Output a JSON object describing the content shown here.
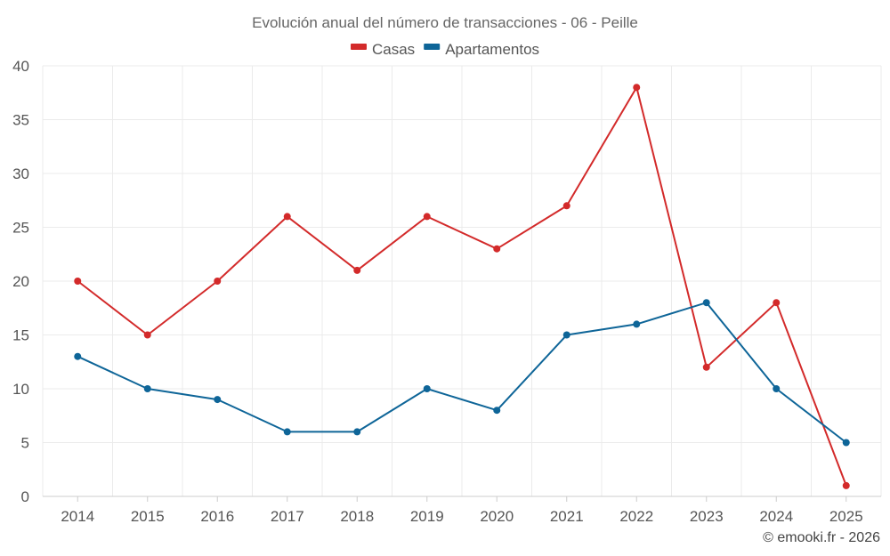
{
  "chart_data": {
    "type": "line",
    "title": "Evolución anual del número de transacciones - 06 - Peille",
    "categories": [
      "2014",
      "2015",
      "2016",
      "2017",
      "2018",
      "2019",
      "2020",
      "2021",
      "2022",
      "2023",
      "2024",
      "2025"
    ],
    "series": [
      {
        "name": "Casas",
        "color": "#d32a2a",
        "values": [
          20,
          15,
          20,
          26,
          21,
          26,
          23,
          27,
          38,
          12,
          18,
          1
        ]
      },
      {
        "name": "Apartamentos",
        "color": "#0e6598",
        "values": [
          13,
          10,
          9,
          6,
          6,
          10,
          8,
          15,
          16,
          18,
          10,
          5
        ]
      }
    ],
    "ylim": [
      0,
      40
    ],
    "yticks": [
      0,
      5,
      10,
      15,
      20,
      25,
      30,
      35,
      40
    ],
    "xlabel": "",
    "ylabel": "",
    "grid": true,
    "legend": "top-center"
  },
  "credit": "© emooki.fr - 2026"
}
